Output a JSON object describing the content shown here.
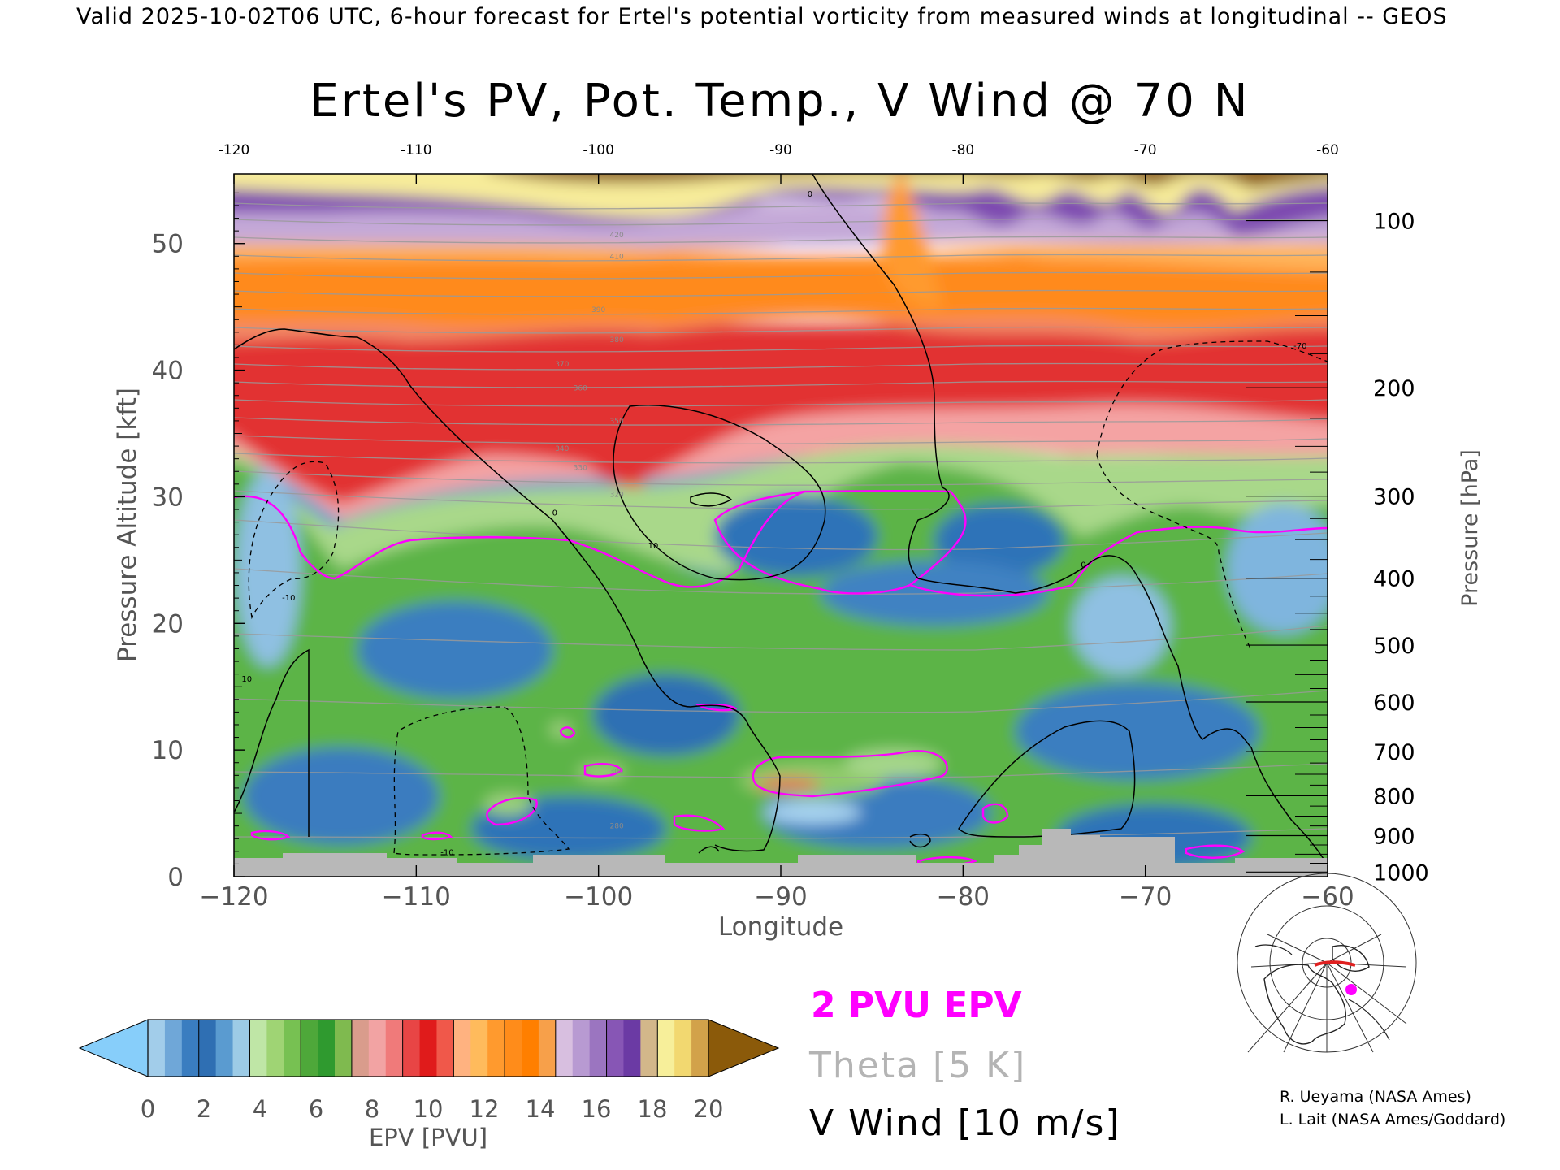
{
  "header": {
    "valid_line": "Valid 2025-10-02T06 UTC, 6-hour forecast for Ertel's potential vorticity from measured winds at longitudinal -- GEOS"
  },
  "chart_data": {
    "type": "heatmap",
    "title": "Ertel's PV, Pot. Temp., V Wind @ 70 N",
    "xlabel": "Longitude",
    "ylabel": "Pressure Altitude [kft]",
    "ylabel_right": "Pressure [hPa]",
    "xlim": [
      -120,
      -60
    ],
    "ylim": [
      0,
      55.5
    ],
    "x_ticks": [
      -120,
      -110,
      -100,
      -90,
      -80,
      -70,
      -60
    ],
    "x_ticklabels": [
      "−120",
      "−110",
      "−100",
      "−90",
      "−80",
      "−70",
      "−60"
    ],
    "x_top_ticklabels": [
      "-120",
      "-110",
      "-100",
      "-90",
      "-80",
      "-70",
      "-60"
    ],
    "y_ticks": [
      0,
      10,
      20,
      30,
      40,
      50
    ],
    "y_ticklabels": [
      "0",
      "10",
      "20",
      "30",
      "40",
      "50"
    ],
    "pressure_ticks": [
      {
        "hpa": 100,
        "label": "100"
      },
      {
        "hpa": 200,
        "label": "200"
      },
      {
        "hpa": 300,
        "label": "300"
      },
      {
        "hpa": 400,
        "label": "400"
      },
      {
        "hpa": 500,
        "label": "500"
      },
      {
        "hpa": 600,
        "label": "600"
      },
      {
        "hpa": 700,
        "label": "700"
      },
      {
        "hpa": 800,
        "label": "800"
      },
      {
        "hpa": 900,
        "label": "900"
      },
      {
        "hpa": 1000,
        "label": "1000"
      }
    ],
    "theta_labels": [
      {
        "label": "420",
        "x": -99,
        "y": 50.7
      },
      {
        "label": "410",
        "x": -99,
        "y": 49.0
      },
      {
        "label": "390",
        "x": -100,
        "y": 44.8
      },
      {
        "label": "380",
        "x": -99,
        "y": 42.4
      },
      {
        "label": "370",
        "x": -102,
        "y": 40.5
      },
      {
        "label": "360",
        "x": -101,
        "y": 38.6
      },
      {
        "label": "350",
        "x": -99,
        "y": 36.0
      },
      {
        "label": "340",
        "x": -102,
        "y": 33.8
      },
      {
        "label": "330",
        "x": -101,
        "y": 32.3
      },
      {
        "label": "320",
        "x": -99,
        "y": 30.2
      },
      {
        "label": "300",
        "x": -99,
        "y": 8.3
      },
      {
        "label": "280",
        "x": -99,
        "y": 4.0
      }
    ],
    "wind_labels": [
      {
        "label": "0",
        "x": -88.4,
        "y": 53.9
      },
      {
        "label": "0",
        "x": -102.4,
        "y": 28.7
      },
      {
        "label": "0",
        "x": -73.4,
        "y": 24.6
      },
      {
        "label": "-10",
        "x": -117,
        "y": 22.0
      },
      {
        "label": "10",
        "x": -97,
        "y": 26.1
      },
      {
        "label": "10",
        "x": -119.3,
        "y": 15.6
      },
      {
        "label": "-10",
        "x": -108.3,
        "y": 1.9
      },
      {
        "label": "-70",
        "x": -61.5,
        "y": 41.9
      }
    ],
    "series": [
      {
        "name": "2 PVU EPV",
        "color": "#ff00ff"
      },
      {
        "name": "Theta [5 K]",
        "color": "#b4b4b4"
      },
      {
        "name": "V Wind [10 m/s]",
        "color": "#000000"
      }
    ],
    "colorbar": {
      "label": "EPV [PVU]",
      "tick_labels": [
        "0",
        "2",
        "4",
        "6",
        "8",
        "10",
        "12",
        "14",
        "16",
        "18",
        "20"
      ],
      "under_color": "#87cefa",
      "over_color": "#8b5a0a",
      "bins": [
        [
          "#a2cdea",
          "#6fa7d8",
          "#3a7dc0"
        ],
        [
          "#2f6fb3",
          "#5a9bd0",
          "#9ccbe6"
        ],
        [
          "#bfe6a6",
          "#9fd474",
          "#77c152"
        ],
        [
          "#4ea83a",
          "#2f9a2f",
          "#7fba4f"
        ],
        [
          "#d99c8c",
          "#f2a3a3",
          "#f07a7a"
        ],
        [
          "#e84545",
          "#e01b1b",
          "#f0584a"
        ],
        [
          "#ffb280",
          "#ffbb5c",
          "#ff9a2e"
        ],
        [
          "#ff8c1a",
          "#ff7f00",
          "#f7a04a"
        ],
        [
          "#d8bfe0",
          "#b89ad2",
          "#9b75c0"
        ],
        [
          "#8756b5",
          "#6b3aa4",
          "#d3b78a"
        ],
        [
          "#f7ef9a",
          "#f2d870",
          "#d2a24a"
        ]
      ]
    }
  },
  "legend": {
    "pvu": "2 PVU EPV",
    "theta": "Theta [5 K]",
    "wind": "V Wind [10 m/s]"
  },
  "credits": {
    "line1": "R. Ueyama (NASA Ames)",
    "line2": "L. Lait (NASA Ames/Goddard)"
  }
}
